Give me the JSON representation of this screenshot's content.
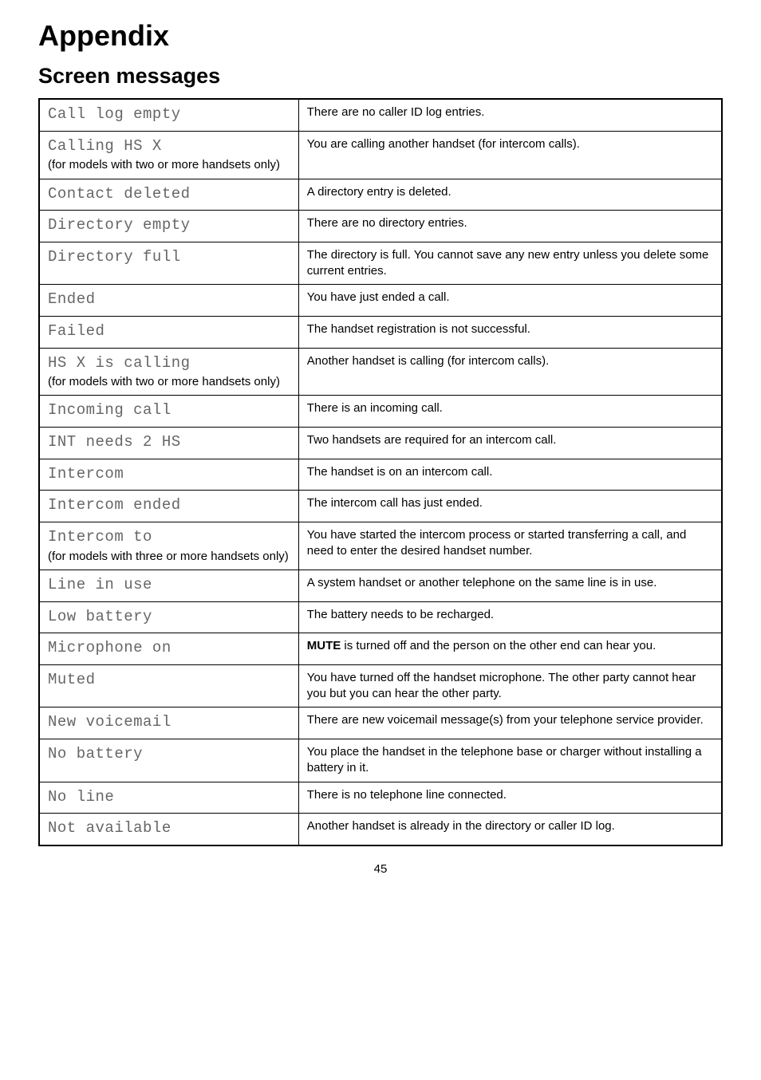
{
  "heading": "Appendix",
  "subheading": "Screen messages",
  "note_two_or_more": "(for models with two or more handsets only)",
  "note_three_or_more": "(for models with three or more handsets only)",
  "rows": [
    {
      "lcd": "Call log empty",
      "note": null,
      "desc": "There are no caller ID log entries."
    },
    {
      "lcd": "Calling HS X",
      "note": "two",
      "desc": "You are calling another handset (for intercom calls)."
    },
    {
      "lcd": "Contact deleted",
      "note": null,
      "desc": "A directory entry is deleted."
    },
    {
      "lcd": "Directory empty",
      "note": null,
      "desc": "There are no directory entries."
    },
    {
      "lcd": "Directory full",
      "note": null,
      "desc": "The directory is full. You cannot save any new entry unless you delete some current entries."
    },
    {
      "lcd": "Ended",
      "note": null,
      "desc": "You have just ended a call."
    },
    {
      "lcd": "Failed",
      "note": null,
      "desc": "The handset registration is not successful."
    },
    {
      "lcd": "HS X is calling",
      "note": "two",
      "desc": "Another handset is calling (for intercom calls)."
    },
    {
      "lcd": "Incoming call",
      "note": null,
      "desc": "There is an incoming call."
    },
    {
      "lcd": "INT needs 2 HS",
      "note": null,
      "desc": "Two handsets are required for an intercom call."
    },
    {
      "lcd": "Intercom",
      "note": null,
      "desc": "The handset is on an intercom call."
    },
    {
      "lcd": "Intercom ended",
      "note": null,
      "desc": "The intercom call has just ended."
    },
    {
      "lcd": "Intercom to",
      "note": "three",
      "desc": "You have started the intercom process or started transferring a call, and need to enter the desired handset number."
    },
    {
      "lcd": "Line in use",
      "note": null,
      "desc": "A system handset or another telephone on the same line is in use."
    },
    {
      "lcd": "Low battery",
      "note": null,
      "desc": "The battery needs to be recharged."
    },
    {
      "lcd": "Microphone on",
      "note": null,
      "desc_html": "<b>MUTE</b> is turned off and the person on the other end can hear you."
    },
    {
      "lcd": "Muted",
      "note": null,
      "desc": "You have turned off the handset microphone. The other party cannot hear you but you can hear the other party."
    },
    {
      "lcd": "New voicemail",
      "note": null,
      "desc": "There are new voicemail message(s) from your telephone service provider."
    },
    {
      "lcd": "No battery",
      "note": null,
      "desc": "You place the handset in the telephone base or charger without installing a battery in it."
    },
    {
      "lcd": "No line",
      "note": null,
      "desc": "There is no telephone line connected."
    },
    {
      "lcd": "Not available",
      "note": null,
      "desc": "Another handset is already in the directory or caller ID log."
    }
  ],
  "page_number": "45"
}
